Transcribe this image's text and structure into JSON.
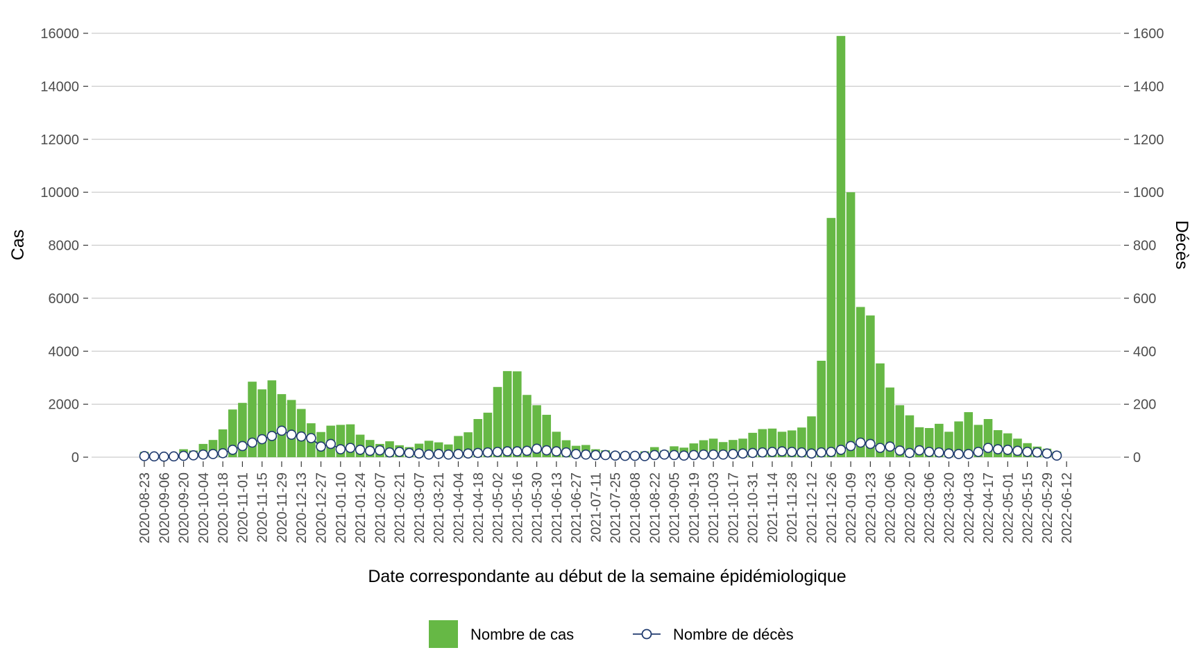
{
  "chart_data": {
    "type": "bar",
    "xlabel": "Date correspondante au début de la semaine épidémiologique",
    "ylabel": "Cas",
    "y2label": "Décès",
    "ylim": [
      0,
      16000
    ],
    "y2lim": [
      0,
      1600
    ],
    "yticks": [
      0,
      2000,
      4000,
      6000,
      8000,
      10000,
      12000,
      14000,
      16000
    ],
    "y2ticks": [
      0,
      200,
      400,
      600,
      800,
      1000,
      1200,
      1400,
      1600
    ],
    "grid": "horizontal",
    "legend_position": "bottom",
    "colors": {
      "cases": "#66b845",
      "deaths_line": "#1f3a6e",
      "deaths_marker_fill": "#ffffff",
      "grid": "#cccccc"
    },
    "x": [
      "2020-08-23",
      "2020-08-30",
      "2020-09-06",
      "2020-09-13",
      "2020-09-20",
      "2020-09-27",
      "2020-10-04",
      "2020-10-11",
      "2020-10-18",
      "2020-10-25",
      "2020-11-01",
      "2020-11-08",
      "2020-11-15",
      "2020-11-22",
      "2020-11-29",
      "2020-12-06",
      "2020-12-13",
      "2020-12-20",
      "2020-12-27",
      "2021-01-03",
      "2021-01-10",
      "2021-01-17",
      "2021-01-24",
      "2021-01-31",
      "2021-02-07",
      "2021-02-14",
      "2021-02-21",
      "2021-02-28",
      "2021-03-07",
      "2021-03-14",
      "2021-03-21",
      "2021-03-28",
      "2021-04-04",
      "2021-04-11",
      "2021-04-18",
      "2021-04-25",
      "2021-05-02",
      "2021-05-09",
      "2021-05-16",
      "2021-05-23",
      "2021-05-30",
      "2021-06-06",
      "2021-06-13",
      "2021-06-20",
      "2021-06-27",
      "2021-07-04",
      "2021-07-11",
      "2021-07-18",
      "2021-07-25",
      "2021-08-01",
      "2021-08-08",
      "2021-08-15",
      "2021-08-22",
      "2021-08-29",
      "2021-09-05",
      "2021-09-12",
      "2021-09-19",
      "2021-09-26",
      "2021-10-03",
      "2021-10-10",
      "2021-10-17",
      "2021-10-24",
      "2021-10-31",
      "2021-11-07",
      "2021-11-14",
      "2021-11-21",
      "2021-11-28",
      "2021-12-05",
      "2021-12-12",
      "2021-12-19",
      "2021-12-26",
      "2022-01-02",
      "2022-01-09",
      "2022-01-16",
      "2022-01-23",
      "2022-01-30",
      "2022-02-06",
      "2022-02-13",
      "2022-02-20",
      "2022-02-27",
      "2022-03-06",
      "2022-03-13",
      "2022-03-20",
      "2022-03-27",
      "2022-04-03",
      "2022-04-10",
      "2022-04-17",
      "2022-04-24",
      "2022-05-01",
      "2022-05-08",
      "2022-05-15",
      "2022-05-22",
      "2022-05-29",
      "2022-06-05",
      "2022-06-12"
    ],
    "tick_labels": [
      "2020-08-23",
      "2020-09-06",
      "2020-09-20",
      "2020-10-04",
      "2020-10-18",
      "2020-11-01",
      "2020-11-15",
      "2020-11-29",
      "2020-12-13",
      "2020-12-27",
      "2021-01-10",
      "2021-01-24",
      "2021-02-07",
      "2021-02-21",
      "2021-03-07",
      "2021-03-21",
      "2021-04-04",
      "2021-04-18",
      "2021-05-02",
      "2021-05-16",
      "2021-05-30",
      "2021-06-13",
      "2021-06-27",
      "2021-07-11",
      "2021-07-25",
      "2021-08-08",
      "2021-08-22",
      "2021-09-05",
      "2021-09-19",
      "2021-10-03",
      "2021-10-17",
      "2021-10-31",
      "2021-11-14",
      "2021-11-28",
      "2021-12-12",
      "2021-12-26",
      "2022-01-09",
      "2022-01-23",
      "2022-02-06",
      "2022-02-20",
      "2022-03-06",
      "2022-03-20",
      "2022-04-03",
      "2022-04-17",
      "2022-05-01",
      "2022-05-15",
      "2022-05-29",
      "2022-06-12"
    ],
    "series": [
      {
        "name": "Nombre de cas",
        "kind": "bar",
        "axis": "left",
        "values": [
          200,
          null,
          null,
          null,
          300,
          250,
          500,
          650,
          1050,
          1800,
          2050,
          2850,
          2560,
          2900,
          2380,
          2160,
          1820,
          1280,
          950,
          1190,
          1220,
          1240,
          850,
          650,
          500,
          600,
          450,
          380,
          510,
          620,
          560,
          480,
          800,
          940,
          1440,
          1680,
          2650,
          3250,
          3240,
          2350,
          1960,
          1600,
          960,
          640,
          430,
          460,
          300,
          260,
          190,
          180,
          170,
          220,
          380,
          250,
          410,
          360,
          520,
          640,
          700,
          570,
          650,
          700,
          920,
          1060,
          1080,
          960,
          1010,
          1120,
          1540,
          3640,
          9030,
          15900,
          10000,
          5670,
          5350,
          3540,
          2630,
          1960,
          1580,
          1130,
          1100,
          1260,
          960,
          1350,
          1700,
          1220,
          1440,
          1020,
          900,
          700,
          530,
          400,
          320,
          210,
          null
        ]
      },
      {
        "name": "Nombre de décès",
        "kind": "line",
        "axis": "right",
        "values": [
          4,
          3,
          2,
          3,
          5,
          7,
          10,
          12,
          15,
          28,
          42,
          55,
          68,
          80,
          100,
          85,
          78,
          72,
          40,
          50,
          30,
          35,
          28,
          24,
          26,
          18,
          20,
          16,
          14,
          10,
          12,
          10,
          12,
          14,
          16,
          18,
          20,
          22,
          22,
          24,
          32,
          26,
          22,
          18,
          12,
          10,
          8,
          8,
          6,
          5,
          5,
          4,
          8,
          10,
          8,
          6,
          8,
          10,
          10,
          10,
          12,
          14,
          16,
          18,
          20,
          22,
          20,
          18,
          14,
          18,
          20,
          28,
          42,
          55,
          50,
          35,
          40,
          25,
          16,
          26,
          20,
          18,
          14,
          12,
          12,
          20,
          35,
          30,
          28,
          24,
          20,
          18,
          14,
          6,
          null
        ]
      }
    ]
  }
}
